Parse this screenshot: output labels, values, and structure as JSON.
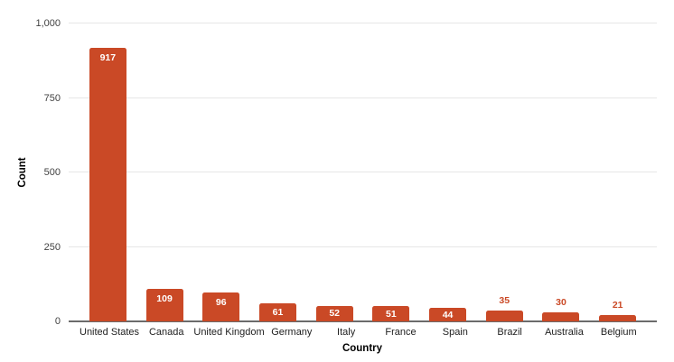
{
  "chart_data": {
    "type": "bar",
    "title": "",
    "xlabel": "Country",
    "ylabel": "Count",
    "categories": [
      "United States",
      "Canada",
      "United Kingdom",
      "Germany",
      "Italy",
      "France",
      "Spain",
      "Brazil",
      "Australia",
      "Belgium"
    ],
    "values": [
      917,
      109,
      96,
      61,
      52,
      51,
      44,
      35,
      30,
      21
    ],
    "ylim": [
      0,
      1000
    ],
    "yticks": [
      0,
      250,
      500,
      750,
      1000
    ],
    "ytick_labels": [
      "0",
      "250",
      "500",
      "750",
      "1,000"
    ],
    "grid": true,
    "legend": "none",
    "colors": {
      "bar": "#ca4926",
      "value_label_inside": "#ffffff",
      "value_label_outside": "#ca4926",
      "gridline": "#e6e6e6",
      "axis_line": "#6b6b6b",
      "tick_text": "#424242",
      "category_text": "#212121",
      "axis_title_text": "#000000"
    }
  }
}
